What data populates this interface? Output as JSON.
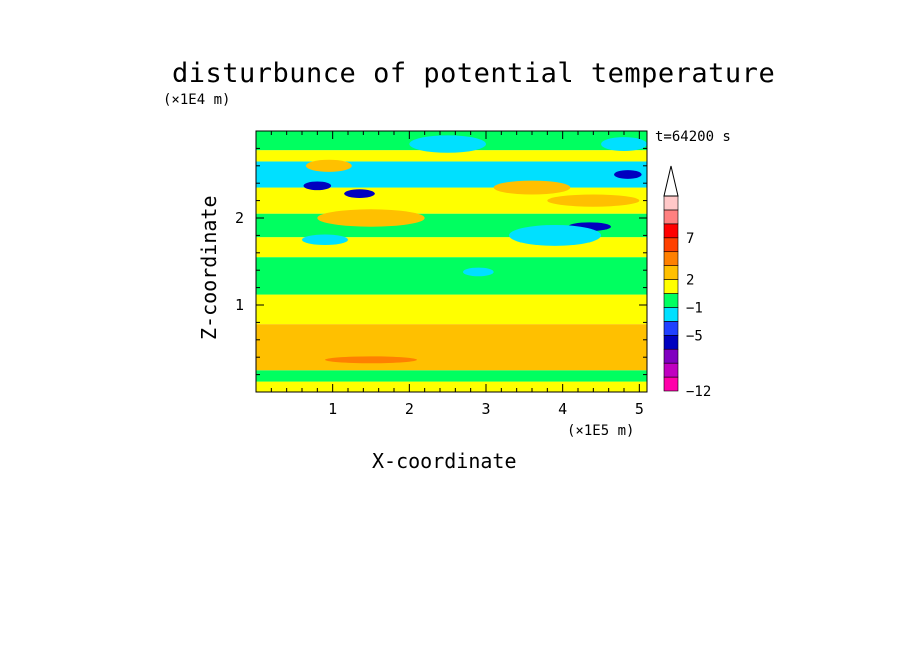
{
  "chart_data": {
    "type": "heatmap",
    "title": "disturbunce of potential temperature",
    "xlabel": "X-coordinate",
    "ylabel": "Z-coordinate",
    "x_unit": "(×1E5 m)",
    "y_unit": "(×1E4 m)",
    "annotation": "t=64200 s",
    "xlim": [
      0,
      5.1
    ],
    "ylim": [
      0,
      3.0
    ],
    "x_ticks": [
      "1",
      "2",
      "3",
      "4",
      "5"
    ],
    "y_ticks": [
      "1",
      "2"
    ],
    "colorbar": {
      "labels": [
        "7",
        "2",
        "−1",
        "−5",
        "−12"
      ],
      "extend": "max",
      "colors": [
        "#ff00aa",
        "#c000c0",
        "#8000c0",
        "#0000c0",
        "#2040ff",
        "#00e0ff",
        "#00ff60",
        "#ffff00",
        "#ffc000",
        "#ff8000",
        "#ff4000",
        "#ff0000",
        "#ff8080",
        "#ffc8c8"
      ]
    },
    "bands": [
      {
        "z": [
          0.0,
          0.12
        ],
        "color": "#ffff00"
      },
      {
        "z": [
          0.12,
          0.25
        ],
        "color": "#00ff60"
      },
      {
        "z": [
          0.25,
          0.78
        ],
        "color": "#ffc000"
      },
      {
        "z": [
          0.78,
          1.12
        ],
        "color": "#ffff00"
      },
      {
        "z": [
          1.12,
          1.55
        ],
        "color": "#00ff60"
      },
      {
        "z": [
          1.55,
          1.78
        ],
        "color": "#ffff00"
      },
      {
        "z": [
          1.78,
          2.05
        ],
        "color": "#00ff60"
      },
      {
        "z": [
          2.05,
          2.35
        ],
        "color": "#ffff00"
      },
      {
        "z": [
          2.35,
          2.65
        ],
        "color": "#00e0ff"
      },
      {
        "z": [
          2.65,
          2.78
        ],
        "color": "#ffff00"
      },
      {
        "z": [
          2.78,
          3.0
        ],
        "color": "#00ff60"
      }
    ],
    "blobs": [
      {
        "x": 0.8,
        "z": 2.37,
        "rx": 0.18,
        "rz": 0.05,
        "color": "#0000c0"
      },
      {
        "x": 1.35,
        "z": 2.28,
        "rx": 0.2,
        "rz": 0.05,
        "color": "#0000c0"
      },
      {
        "x": 4.35,
        "z": 1.9,
        "rx": 0.28,
        "rz": 0.05,
        "color": "#0000c0"
      },
      {
        "x": 4.85,
        "z": 2.5,
        "rx": 0.18,
        "rz": 0.05,
        "color": "#0000c0"
      },
      {
        "x": 0.9,
        "z": 1.75,
        "rx": 0.3,
        "rz": 0.06,
        "color": "#00e0ff"
      },
      {
        "x": 2.9,
        "z": 1.38,
        "rx": 0.2,
        "rz": 0.05,
        "color": "#00e0ff"
      },
      {
        "x": 3.9,
        "z": 1.8,
        "rx": 0.6,
        "rz": 0.12,
        "color": "#00e0ff"
      },
      {
        "x": 0.95,
        "z": 2.6,
        "rx": 0.3,
        "rz": 0.07,
        "color": "#ffc000"
      },
      {
        "x": 1.5,
        "z": 2.0,
        "rx": 0.7,
        "rz": 0.1,
        "color": "#ffc000"
      },
      {
        "x": 3.6,
        "z": 2.35,
        "rx": 0.5,
        "rz": 0.08,
        "color": "#ffc000"
      },
      {
        "x": 4.4,
        "z": 2.2,
        "rx": 0.6,
        "rz": 0.07,
        "color": "#ffc000"
      },
      {
        "x": 1.5,
        "z": 0.37,
        "rx": 0.6,
        "rz": 0.04,
        "color": "#ff8000"
      },
      {
        "x": 2.5,
        "z": 2.85,
        "rx": 0.5,
        "rz": 0.1,
        "color": "#00e0ff"
      },
      {
        "x": 4.8,
        "z": 2.85,
        "rx": 0.3,
        "rz": 0.08,
        "color": "#00e0ff"
      }
    ]
  }
}
